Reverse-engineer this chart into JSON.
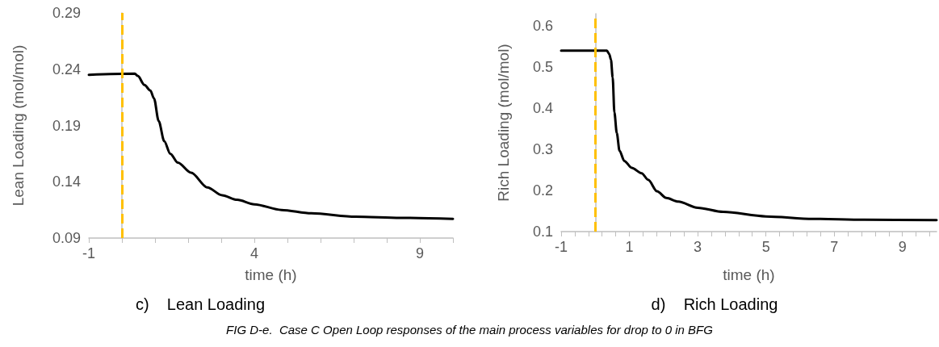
{
  "chart_data": [
    {
      "type": "line",
      "title": "c)    Lean Loading",
      "xlabel": "time (h)",
      "ylabel": "Lean Loading (mol/mol)",
      "x": [
        -1,
        0.39,
        0.48,
        0.68,
        0.86,
        0.97,
        1.11,
        1.28,
        1.46,
        1.69,
        2.09,
        2.58,
        3.03,
        3.48,
        4.0,
        4.82,
        5.72,
        7.06,
        8.41,
        10
      ],
      "series": [
        {
          "color": "#000000",
          "values": [
            0.235,
            0.236,
            0.234,
            0.226,
            0.221,
            0.214,
            0.194,
            0.176,
            0.165,
            0.157,
            0.148,
            0.135,
            0.128,
            0.124,
            0.12,
            0.115,
            0.112,
            0.109,
            0.108,
            0.107
          ]
        }
      ],
      "xlim": [
        -1,
        10
      ],
      "xticks": [
        -1,
        {
          "value": 0,
          "label": null
        },
        {
          "value": 1,
          "label": null
        },
        {
          "value": 2,
          "label": null
        },
        {
          "value": 3,
          "label": null
        },
        4,
        {
          "value": 5,
          "label": null
        },
        {
          "value": 6,
          "label": null
        },
        {
          "value": 7,
          "label": null
        },
        {
          "value": 8,
          "label": null
        },
        9,
        {
          "value": 10,
          "label": null
        }
      ],
      "ylim": [
        0.09,
        0.29
      ],
      "yticks": [
        0.09,
        0.14,
        0.19,
        0.24,
        0.29
      ],
      "ref_lines": [
        {
          "axis": "x",
          "value": 0,
          "color": "#ffc000",
          "line_style": "dashed"
        }
      ],
      "grid": false,
      "marker": "none",
      "line_style": "solid",
      "annotations": [
        "FIG D-e.  Case C Open Loop responses of the main process variables for drop to 0 in BFG"
      ]
    },
    {
      "type": "line",
      "title": "d)    Rich Loading",
      "xlabel": "time (h)",
      "ylabel": "Rich Loading (mol/mol)",
      "x": [
        -1,
        0.34,
        0.41,
        0.46,
        0.51,
        0.56,
        0.63,
        0.71,
        0.85,
        1.07,
        1.36,
        1.55,
        1.81,
        2.08,
        2.43,
        3.0,
        3.75,
        5.0,
        6.38,
        7.88,
        10
      ],
      "series": [
        {
          "color": "#000000",
          "values": [
            0.54,
            0.54,
            0.532,
            0.518,
            0.475,
            0.39,
            0.34,
            0.297,
            0.272,
            0.255,
            0.242,
            0.226,
            0.198,
            0.182,
            0.173,
            0.158,
            0.148,
            0.137,
            0.131,
            0.129,
            0.128
          ]
        }
      ],
      "xlim": [
        -1,
        10
      ],
      "xticks": [
        -1,
        {
          "value": -0.6,
          "label": null
        },
        {
          "value": -0.2,
          "label": null
        },
        {
          "value": 0.2,
          "label": null
        },
        {
          "value": 0.6,
          "label": null
        },
        1,
        {
          "value": 1.4,
          "label": null
        },
        {
          "value": 1.8,
          "label": null
        },
        {
          "value": 2.2,
          "label": null
        },
        {
          "value": 2.6,
          "label": null
        },
        3,
        {
          "value": 3.4,
          "label": null
        },
        {
          "value": 3.8,
          "label": null
        },
        {
          "value": 4.2,
          "label": null
        },
        {
          "value": 4.6,
          "label": null
        },
        5,
        {
          "value": 5.4,
          "label": null
        },
        {
          "value": 5.8,
          "label": null
        },
        {
          "value": 6.2,
          "label": null
        },
        {
          "value": 6.6,
          "label": null
        },
        7,
        {
          "value": 7.4,
          "label": null
        },
        {
          "value": 7.8,
          "label": null
        },
        {
          "value": 8.2,
          "label": null
        },
        {
          "value": 8.6,
          "label": null
        },
        9,
        {
          "value": 9.4,
          "label": null
        },
        {
          "value": 9.8,
          "label": null
        }
      ],
      "ylim": [
        0.1,
        0.63
      ],
      "yticks": [
        0.1,
        0.2,
        0.3,
        0.4,
        0.5,
        0.6
      ],
      "ref_lines": [
        {
          "axis": "x",
          "value": 0,
          "color": "#ffc000",
          "line_style": "dashed"
        }
      ],
      "grid": false,
      "marker": "none",
      "line_style": "solid"
    }
  ]
}
